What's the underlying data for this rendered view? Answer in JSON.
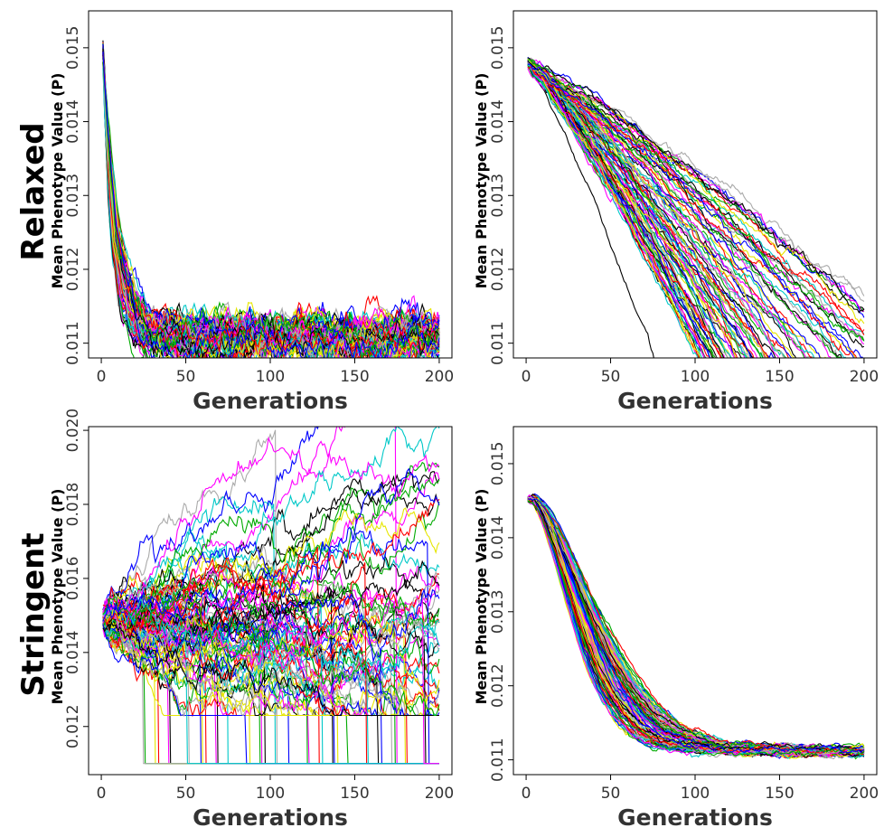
{
  "figure": {
    "row_labels": [
      "Relaxed",
      "Stringent"
    ]
  },
  "colors": {
    "series_palette": [
      "#000000",
      "#ff0000",
      "#00aa00",
      "#0000ff",
      "#00c8c8",
      "#ff00ff",
      "#e6e600",
      "#aaaaaa"
    ]
  },
  "chart_data": [
    {
      "type": "line",
      "panel": "top-left",
      "row": "Relaxed",
      "xlabel": "Generations",
      "ylabel": "Mean Phenotype Value (P)",
      "xlim": [
        0,
        200
      ],
      "ylim": [
        0.0108,
        0.0155
      ],
      "xticks": [
        0,
        50,
        100,
        150,
        200
      ],
      "yticks": [
        0.011,
        0.012,
        0.013,
        0.014,
        0.015
      ],
      "xtick_labels": [
        "0",
        "50",
        "100",
        "150",
        "200"
      ],
      "ytick_labels": [
        "0.011",
        "0.012",
        "0.013",
        "0.014",
        "0.015"
      ],
      "n_series": 100,
      "series_summary": {
        "start": 0.0149,
        "plateau": 0.0111,
        "decay_generations": 30,
        "spread": 0.0002
      }
    },
    {
      "type": "line",
      "panel": "top-right",
      "row": "Relaxed",
      "xlabel": "Generations",
      "ylabel": "Mean Phenotype Value (P)",
      "xlim": [
        0,
        200
      ],
      "ylim": [
        0.0108,
        0.0155
      ],
      "xticks": [
        0,
        50,
        100,
        150,
        200
      ],
      "yticks": [
        0.011,
        0.012,
        0.013,
        0.014,
        0.015
      ],
      "xtick_labels": [
        "0",
        "50",
        "100",
        "150",
        "200"
      ],
      "ytick_labels": [
        "0.011",
        "0.012",
        "0.013",
        "0.014",
        "0.015"
      ],
      "n_series": 100,
      "series_summary": {
        "start": 0.0148,
        "end_range": [
          0.0106,
          0.012
        ],
        "floor": 0.011
      }
    },
    {
      "type": "line",
      "panel": "bottom-left",
      "row": "Stringent",
      "xlabel": "Generations",
      "ylabel": "Mean Phenotype Value (P)",
      "xlim": [
        0,
        200
      ],
      "ylim": [
        0.0107,
        0.0201
      ],
      "xticks": [
        0,
        50,
        100,
        150,
        200
      ],
      "yticks": [
        0.012,
        0.014,
        0.016,
        0.018,
        0.02
      ],
      "xtick_labels": [
        "0",
        "50",
        "100",
        "150",
        "200"
      ],
      "ytick_labels": [
        "0.012",
        "0.014",
        "0.016",
        "0.018",
        "0.020"
      ],
      "n_series": 100,
      "series_summary": {
        "start": 0.0149,
        "end_range": [
          0.013,
          0.02
        ],
        "extinction_value": 0.011
      }
    },
    {
      "type": "line",
      "panel": "bottom-right",
      "row": "Stringent",
      "xlabel": "Generations",
      "ylabel": "Mean Phenotype Value (P)",
      "xlim": [
        0,
        200
      ],
      "ylim": [
        0.0108,
        0.0155
      ],
      "xticks": [
        0,
        50,
        100,
        150,
        200
      ],
      "yticks": [
        0.011,
        0.012,
        0.013,
        0.014,
        0.015
      ],
      "xtick_labels": [
        "0",
        "50",
        "100",
        "150",
        "200"
      ],
      "ytick_labels": [
        "0.011",
        "0.012",
        "0.013",
        "0.014",
        "0.015"
      ],
      "n_series": 100,
      "series_summary": {
        "start": 0.0145,
        "plateau": 0.0111,
        "decay_generations": 55,
        "spread": 5e-05
      }
    }
  ]
}
